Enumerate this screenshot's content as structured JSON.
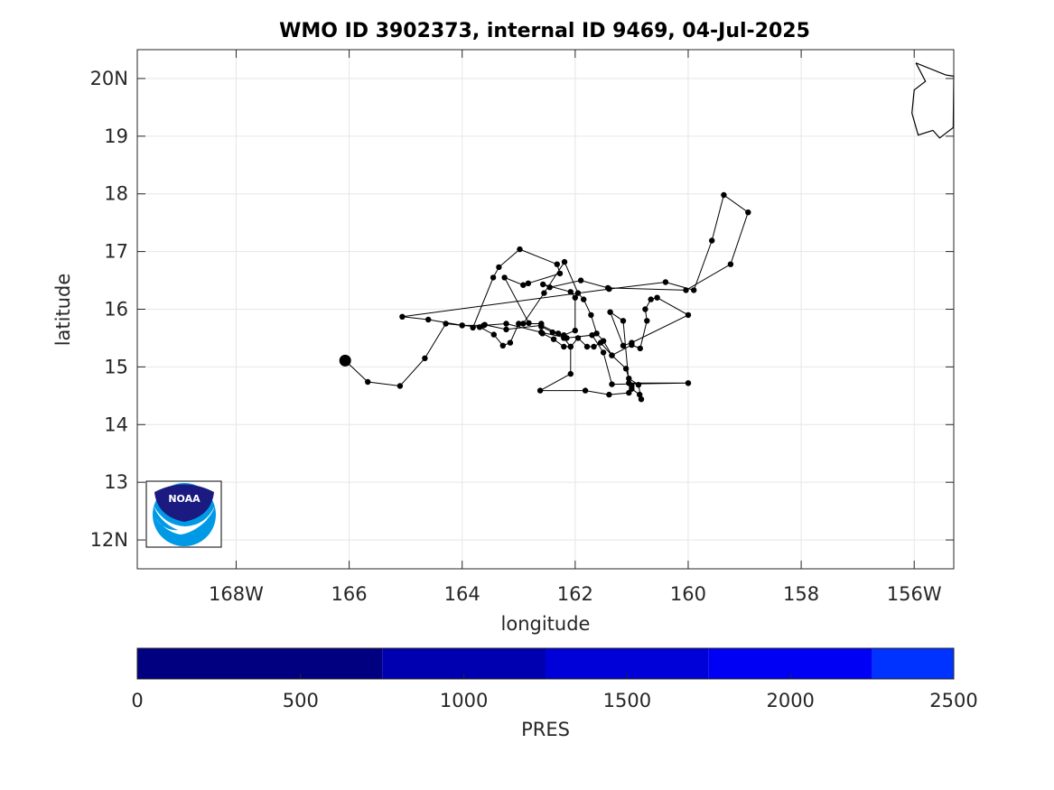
{
  "chart_data": {
    "type": "scatter",
    "title": "WMO ID 3902373, internal ID 9469, 04-Jul-2025",
    "xlabel": "longitude",
    "ylabel": "latitude",
    "xlim": [
      -169.75,
      -155.3
    ],
    "ylim": [
      11.5,
      20.5
    ],
    "grid": true,
    "x_ticks": [
      {
        "value": -168,
        "label": "168W"
      },
      {
        "value": -166,
        "label": "166"
      },
      {
        "value": -164,
        "label": "164"
      },
      {
        "value": -162,
        "label": "162"
      },
      {
        "value": -160,
        "label": "160"
      },
      {
        "value": -158,
        "label": "158"
      },
      {
        "value": -156,
        "label": "156W"
      }
    ],
    "y_ticks": [
      {
        "value": 20,
        "label": "20N"
      },
      {
        "value": 19,
        "label": "19"
      },
      {
        "value": 18,
        "label": "18"
      },
      {
        "value": 17,
        "label": "17"
      },
      {
        "value": 16,
        "label": "16"
      },
      {
        "value": 15,
        "label": "15"
      },
      {
        "value": 14,
        "label": "14"
      },
      {
        "value": 13,
        "label": "13"
      },
      {
        "value": 12,
        "label": "12N"
      }
    ],
    "start_point": {
      "lon": -166.07,
      "lat": 15.11
    },
    "track": [
      [
        -166.07,
        15.11
      ],
      [
        -165.67,
        14.74
      ],
      [
        -165.1,
        14.67
      ],
      [
        -164.66,
        15.15
      ],
      [
        -164.29,
        15.75
      ],
      [
        -164.0,
        15.72
      ],
      [
        -163.69,
        15.69
      ],
      [
        -163.44,
        15.56
      ],
      [
        -163.28,
        15.37
      ],
      [
        -163.15,
        15.42
      ],
      [
        -163.0,
        15.75
      ],
      [
        -162.6,
        15.75
      ],
      [
        -162.58,
        15.58
      ],
      [
        -162.38,
        15.48
      ],
      [
        -162.2,
        15.35
      ],
      [
        -162.08,
        15.35
      ],
      [
        -161.95,
        15.5
      ],
      [
        -161.79,
        15.35
      ],
      [
        -161.67,
        15.35
      ],
      [
        -161.55,
        15.42
      ],
      [
        -161.35,
        15.2
      ],
      [
        -161.1,
        14.97
      ],
      [
        -161.05,
        14.8
      ],
      [
        -160.88,
        14.69
      ],
      [
        -160.83,
        14.44
      ],
      [
        -160.86,
        14.52
      ],
      [
        -161.0,
        14.62
      ],
      [
        -161.0,
        14.67
      ],
      [
        -161.05,
        14.55
      ],
      [
        -161.4,
        14.52
      ],
      [
        -161.82,
        14.59
      ],
      [
        -162.62,
        14.59
      ],
      [
        -162.08,
        14.88
      ],
      [
        -162.08,
        15.35
      ],
      [
        -162.2,
        15.5
      ],
      [
        -162.3,
        15.58
      ],
      [
        -162.6,
        15.72
      ],
      [
        -163.22,
        15.65
      ],
      [
        -163.6,
        15.73
      ],
      [
        -163.81,
        15.68
      ],
      [
        -163.45,
        16.55
      ],
      [
        -163.35,
        16.73
      ],
      [
        -162.98,
        17.04
      ],
      [
        -162.32,
        16.78
      ],
      [
        -162.27,
        16.62
      ],
      [
        -162.83,
        16.45
      ],
      [
        -162.92,
        16.42
      ],
      [
        -163.25,
        16.55
      ],
      [
        -162.82,
        15.76
      ],
      [
        -162.92,
        15.75
      ],
      [
        -162.55,
        16.28
      ],
      [
        -162.19,
        16.82
      ],
      [
        -161.95,
        16.28
      ],
      [
        -161.85,
        16.17
      ],
      [
        -161.72,
        15.9
      ],
      [
        -161.62,
        15.58
      ],
      [
        -161.5,
        15.45
      ],
      [
        -161.35,
        15.2
      ],
      [
        -161.0,
        15.38
      ],
      [
        -160.85,
        15.32
      ],
      [
        -160.73,
        15.8
      ],
      [
        -160.76,
        16.0
      ],
      [
        -160.66,
        16.17
      ],
      [
        -160.55,
        16.2
      ],
      [
        -160.0,
        15.9
      ],
      [
        -161.0,
        15.42
      ],
      [
        -161.15,
        15.37
      ],
      [
        -161.38,
        15.95
      ],
      [
        -161.15,
        15.8
      ],
      [
        -161.05,
        14.72
      ],
      [
        -160.0,
        14.72
      ],
      [
        -161.35,
        14.7
      ],
      [
        -161.5,
        15.25
      ],
      [
        -161.7,
        15.55
      ],
      [
        -162.15,
        15.5
      ],
      [
        -162.6,
        15.6
      ],
      [
        -163.22,
        15.75
      ],
      [
        -163.62,
        15.72
      ],
      [
        -164.0,
        15.72
      ],
      [
        -164.6,
        15.82
      ],
      [
        -165.06,
        15.87
      ],
      [
        -161.4,
        16.35
      ],
      [
        -160.4,
        16.47
      ],
      [
        -159.9,
        16.33
      ],
      [
        -159.58,
        17.19
      ],
      [
        -159.37,
        17.98
      ],
      [
        -158.94,
        17.68
      ],
      [
        -159.25,
        16.78
      ],
      [
        -160.04,
        16.33
      ],
      [
        -161.42,
        16.37
      ],
      [
        -161.9,
        16.5
      ],
      [
        -162.45,
        16.38
      ],
      [
        -162.57,
        16.43
      ],
      [
        -162.08,
        16.3
      ],
      [
        -162.0,
        16.2
      ],
      [
        -162.0,
        15.63
      ],
      [
        -162.2,
        15.55
      ],
      [
        -162.4,
        15.6
      ],
      [
        -162.6,
        15.7
      ]
    ],
    "colorbar": {
      "label": "PRES",
      "range": [
        0,
        2500
      ],
      "tick_labels": [
        "0",
        "500",
        "1000",
        "1500",
        "2000",
        "2500"
      ],
      "segments": [
        {
          "from": 0,
          "to": 750,
          "color": "#000080"
        },
        {
          "from": 750,
          "to": 1250,
          "color": "#0000b0"
        },
        {
          "from": 1250,
          "to": 1750,
          "color": "#0000d8"
        },
        {
          "from": 1750,
          "to": 2250,
          "color": "#0000f5"
        },
        {
          "from": 2250,
          "to": 2500,
          "color": "#0033ff"
        }
      ]
    },
    "coastline_island": [
      [
        -155.97,
        20.27
      ],
      [
        -155.44,
        20.06
      ],
      [
        -155.3,
        20.04
      ],
      [
        -155.3,
        20.05
      ],
      [
        -155.31,
        19.15
      ],
      [
        -155.55,
        18.97
      ],
      [
        -155.67,
        19.1
      ],
      [
        -155.93,
        19.02
      ],
      [
        -156.04,
        19.4
      ],
      [
        -156.0,
        19.8
      ],
      [
        -155.8,
        19.95
      ],
      [
        -155.97,
        20.27
      ]
    ],
    "logo": "NOAA"
  }
}
